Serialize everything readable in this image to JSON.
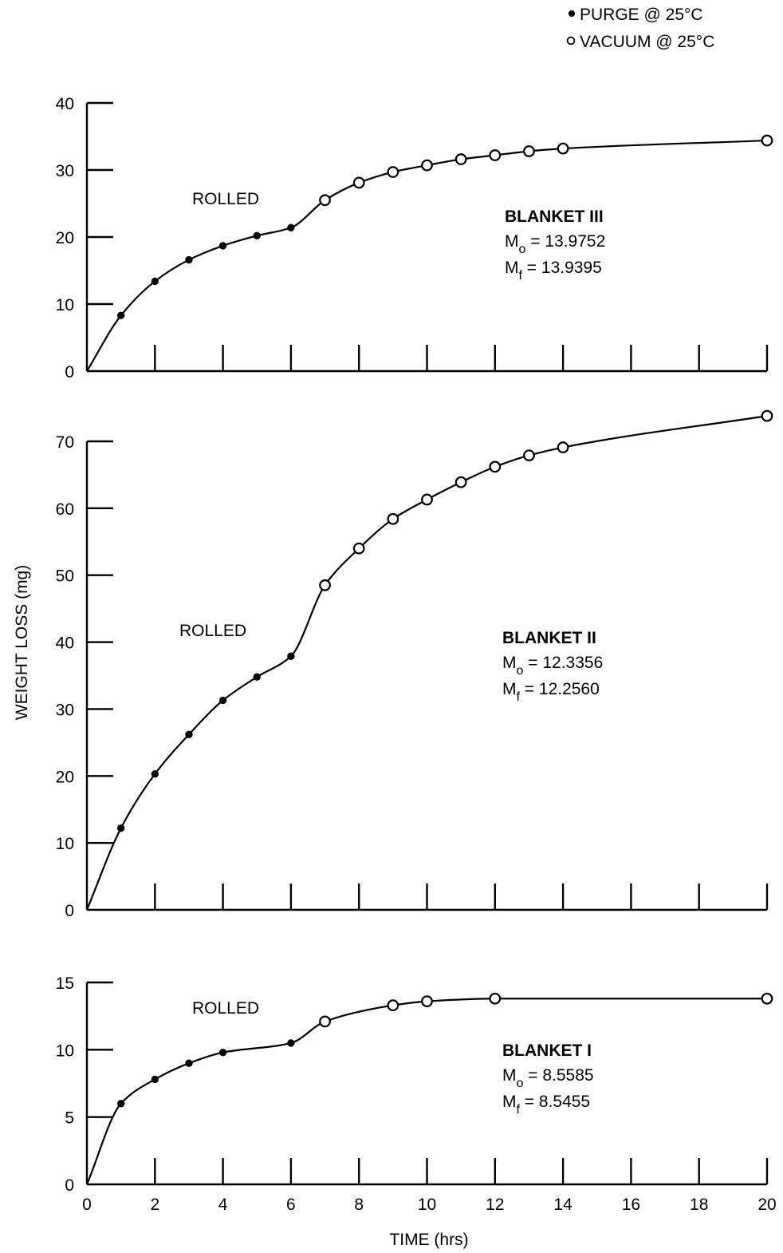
{
  "chart_data": {
    "type": "scatter",
    "xlabel": "TIME (hrs)",
    "ylabel": "WEIGHT LOSS (mg)",
    "x_ticks": [
      0,
      2,
      4,
      6,
      8,
      10,
      12,
      14,
      16,
      18,
      20
    ],
    "xlim": [
      0,
      20
    ],
    "grid": false,
    "legend": {
      "placement": "top-right",
      "entries": [
        {
          "marker": "filled-circle",
          "label": "PURGE @ 25°C"
        },
        {
          "marker": "open-circle",
          "label": "VACUUM @ 25°C"
        }
      ]
    },
    "panels": [
      {
        "name": "BLANKET III",
        "m0_label": "M",
        "m0_sub": "o",
        "m0_value": "= 13.9752",
        "mf_label": "M",
        "mf_sub": "f",
        "mf_value": "= 13.9395",
        "annotation": "ROLLED",
        "ylim": [
          0,
          40
        ],
        "y_ticks": [
          0,
          10,
          20,
          30,
          40
        ],
        "series": [
          {
            "name": "PURGE @ 25°C",
            "marker": "filled",
            "x": [
              1,
              2,
              3,
              4,
              5,
              6
            ],
            "y": [
              8.3,
              13.4,
              16.6,
              18.7,
              20.2,
              21.4
            ]
          },
          {
            "name": "VACUUM @ 25°C",
            "marker": "open",
            "x": [
              7,
              8,
              9,
              10,
              11,
              12,
              13,
              14,
              20
            ],
            "y": [
              25.5,
              28.1,
              29.7,
              30.7,
              31.6,
              32.2,
              32.8,
              33.2,
              34.4
            ]
          }
        ]
      },
      {
        "name": "BLANKET II",
        "m0_label": "M",
        "m0_sub": "o",
        "m0_value": "= 12.3356",
        "mf_label": "M",
        "mf_sub": "f",
        "mf_value": "= 12.2560",
        "annotation": "ROLLED",
        "ylim": [
          0,
          70
        ],
        "y_ticks": [
          0,
          10,
          20,
          30,
          40,
          50,
          60,
          70
        ],
        "series": [
          {
            "name": "PURGE @ 25°C",
            "marker": "filled",
            "x": [
              1,
              2,
              3,
              4,
              5,
              6
            ],
            "y": [
              12.2,
              20.3,
              26.2,
              31.3,
              34.8,
              37.9
            ]
          },
          {
            "name": "VACUUM @ 25°C",
            "marker": "open",
            "x": [
              7,
              8,
              9,
              10,
              11,
              12,
              13,
              14,
              20
            ],
            "y": [
              48.5,
              54.0,
              58.4,
              61.3,
              63.9,
              66.2,
              67.9,
              69.1,
              73.8
            ]
          }
        ]
      },
      {
        "name": "BLANKET I",
        "m0_label": "M",
        "m0_sub": "o",
        "m0_value": "= 8.5585",
        "mf_label": "M",
        "mf_sub": "f",
        "mf_value": "= 8.5455",
        "annotation": "ROLLED",
        "ylim": [
          0,
          15
        ],
        "y_ticks": [
          0,
          5,
          10,
          15
        ],
        "series": [
          {
            "name": "PURGE @ 25°C",
            "marker": "filled",
            "x": [
              1,
              2,
              3,
              4,
              6
            ],
            "y": [
              6.0,
              7.8,
              9.0,
              9.8,
              10.5
            ]
          },
          {
            "name": "VACUUM @ 25°C",
            "marker": "open",
            "x": [
              7,
              9,
              10,
              12,
              20
            ],
            "y": [
              12.1,
              13.3,
              13.6,
              13.8,
              13.8
            ]
          }
        ]
      }
    ]
  }
}
